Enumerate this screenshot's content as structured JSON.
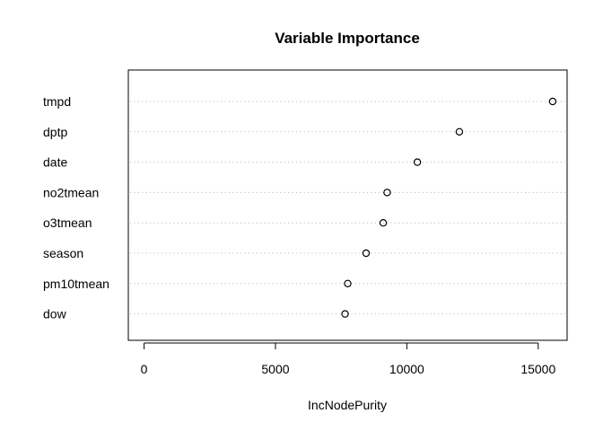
{
  "chart_data": {
    "type": "scatter",
    "title": "Variable Importance",
    "xlabel": "IncNodePurity",
    "ylabel": "",
    "xlim": [
      -600,
      16100
    ],
    "x_ticks": [
      0,
      5000,
      10000,
      15000
    ],
    "x_tick_labels": [
      "0",
      "5000",
      "10000",
      "15000"
    ],
    "grid": "dotted horizontal lines",
    "categories": [
      "tmpd",
      "dptp",
      "date",
      "no2tmean",
      "o3tmean",
      "season",
      "pm10tmean",
      "dow"
    ],
    "values": [
      15550,
      12000,
      10400,
      9250,
      9100,
      8450,
      7750,
      7650
    ]
  }
}
